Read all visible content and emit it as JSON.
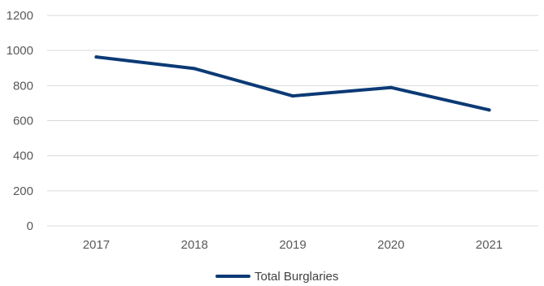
{
  "chart_data": {
    "type": "line",
    "title": "",
    "xlabel": "",
    "ylabel": "",
    "categories": [
      "2017",
      "2018",
      "2019",
      "2020",
      "2021"
    ],
    "series": [
      {
        "name": "Total Burglaries",
        "values": [
          963,
          897,
          741,
          789,
          661
        ],
        "color": "#0B3A75"
      }
    ],
    "ylim": [
      0,
      1200
    ],
    "yticks": [
      0,
      200,
      400,
      600,
      800,
      1000,
      1200
    ],
    "grid": true,
    "gridColor": "#D9D9D9",
    "legend": "bottom"
  }
}
